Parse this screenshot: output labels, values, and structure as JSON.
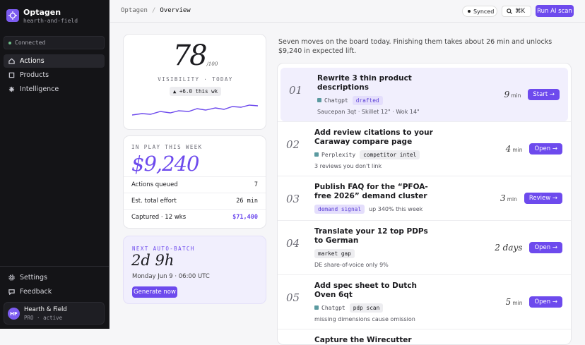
{
  "sidebar": {
    "brand": "Optagen",
    "workspace": "hearth-and-field",
    "status": "Connected",
    "nav": [
      "Actions",
      "Products",
      "Intelligence"
    ],
    "footer_nav": [
      "Settings",
      "Feedback"
    ],
    "user": {
      "initials": "HF",
      "name": "Hearth & Field",
      "plan": "PRO · active"
    }
  },
  "topbar": {
    "breadcrumb": [
      "Optagen",
      "Overview"
    ],
    "separator": "/",
    "sync": "Synced",
    "shortcut": "⌘K",
    "button": "Run AI scan"
  },
  "visibility": {
    "score": "78",
    "max": "/100",
    "label": "VISIBILITY · TODAY",
    "delta": "▲ +6.0 this wk"
  },
  "in_play": {
    "label": "IN PLAY THIS WEEK",
    "amount": "$9,240",
    "rows": [
      {
        "label": "Actions queued",
        "value": "7"
      },
      {
        "label": "Est. total effort",
        "value": "26 min"
      },
      {
        "label": "Captured · 12 wks",
        "value": "$71,400"
      }
    ]
  },
  "auto_batch": {
    "label": "NEXT AUTO-BATCH",
    "countdown": "2d 9h",
    "schedule": "Monday Jun 9 · 06:00 UTC",
    "button": "Generate now"
  },
  "summary": "Seven moves on the board today. Finishing them takes about 26 min and unlocks $9,240 in expected lift.",
  "actions": [
    {
      "number": "01",
      "title": "Rewrite 3 thin product descriptions",
      "source": "Chatgpt",
      "tag": "drafted",
      "tag_color": "#e4defc",
      "note": "Saucepan 3qt · Skillet 12\" · Wok 14\"",
      "time": "9",
      "unit": "min",
      "button": "Start →"
    },
    {
      "number": "02",
      "title": "Add review citations to your Caraway compare page",
      "source": "Perplexity",
      "tag": "competitor intel",
      "tag_color": "#ededf0",
      "note": "3 reviews you don't link",
      "time": "4",
      "unit": "min",
      "button": "Open →"
    },
    {
      "number": "03",
      "title": "Publish FAQ for the “PFOA-free 2026” demand cluster",
      "tag": "demand signal",
      "tag_color": "#e4defc",
      "tag_note": "up 340% this week",
      "time": "3",
      "unit": "min",
      "button": "Review →"
    },
    {
      "number": "04",
      "title": "Translate your 12 top PDPs to German",
      "tag": "market gap",
      "tag_color": "#ededf0",
      "note": "DE share-of-voice only 9%",
      "time": "2 days",
      "button": "Open →"
    },
    {
      "number": "05",
      "title": "Add spec sheet to Dutch Oven 6qt",
      "source": "Chatgpt",
      "tag": "pdp scan",
      "tag_color": "#ededf0",
      "note": "missing dimensions cause omission",
      "time": "5",
      "unit": "min",
      "button": "Open →"
    },
    {
      "title": "Capture the Wirecutter roundup"
    }
  ]
}
